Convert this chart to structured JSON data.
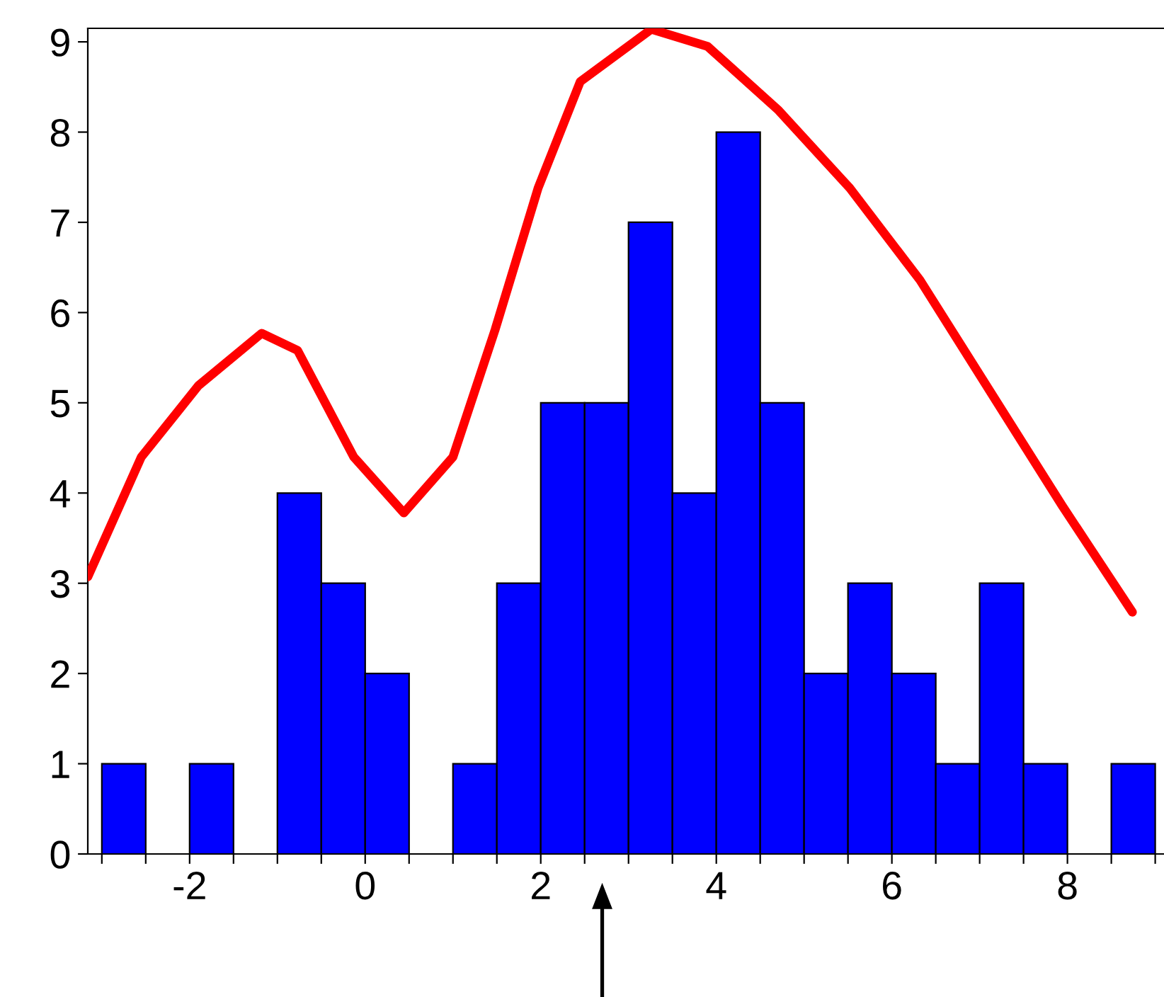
{
  "chart_data": {
    "type": "histogram",
    "bins": [
      -3,
      -2.5,
      -2,
      -1.5,
      -1,
      -0.5,
      0,
      0.5,
      1,
      1.5,
      2,
      2.5,
      3,
      3.5,
      4,
      4.5,
      5,
      5.5,
      6,
      6.5,
      7,
      7.5,
      8,
      8.5,
      9
    ],
    "values": [
      1,
      0,
      1,
      0,
      4,
      3,
      2,
      0,
      1,
      3,
      5,
      5,
      7,
      4,
      8,
      5,
      2,
      3,
      2,
      1,
      3,
      1,
      0,
      1
    ],
    "color": "#0000ff",
    "series": [
      {
        "type": "line",
        "color": "#ff0000",
        "x": [
          -3.16,
          -2.55,
          -1.9,
          -1.18,
          -0.77,
          -0.13,
          0.44,
          1.0,
          1.48,
          1.97,
          2.45,
          3.26,
          3.9,
          4.71,
          5.52,
          6.32,
          7.13,
          7.94,
          8.74
        ],
        "values": [
          3.07,
          4.4,
          5.19,
          5.77,
          5.58,
          4.4,
          3.78,
          4.4,
          5.81,
          7.38,
          8.56,
          9.14,
          8.95,
          8.24,
          7.38,
          6.36,
          5.11,
          3.86,
          2.68
        ]
      }
    ],
    "xlim": [
      -3.16,
      9.1
    ],
    "ylim": [
      0,
      9.15
    ],
    "xticks": [
      {
        "value": -3,
        "label": null
      },
      {
        "value": -2.5,
        "label": null
      },
      -2,
      {
        "value": -1.5,
        "label": null
      },
      {
        "value": -1,
        "label": null
      },
      {
        "value": -0.5,
        "label": null
      },
      0,
      {
        "value": 0.5,
        "label": null
      },
      {
        "value": 1,
        "label": null
      },
      {
        "value": 1.5,
        "label": null
      },
      2,
      {
        "value": 2.5,
        "label": null
      },
      {
        "value": 3,
        "label": null
      },
      {
        "value": 3.5,
        "label": null
      },
      4,
      {
        "value": 4.5,
        "label": null
      },
      {
        "value": 5,
        "label": null
      },
      {
        "value": 5.5,
        "label": null
      },
      6,
      {
        "value": 6.5,
        "label": null
      },
      {
        "value": 7,
        "label": null
      },
      {
        "value": 7.5,
        "label": null
      },
      8,
      {
        "value": 8.5,
        "label": null
      },
      {
        "value": 9,
        "label": null
      }
    ],
    "yticks": [
      0,
      1,
      2,
      3,
      4,
      5,
      6,
      7,
      8,
      9
    ],
    "grid": false,
    "legend": false
  }
}
